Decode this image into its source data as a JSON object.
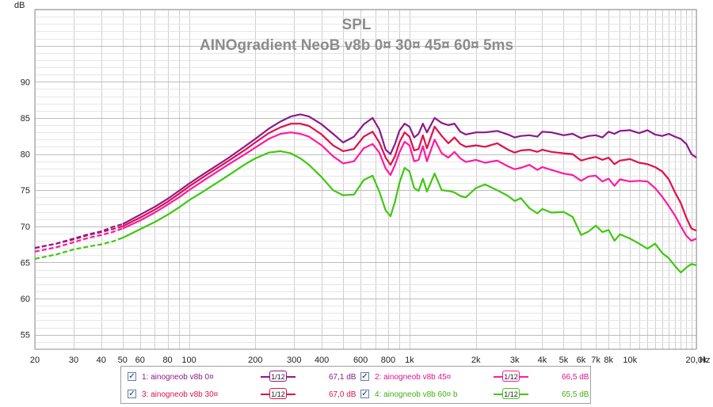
{
  "chart_data": {
    "type": "line",
    "title": "SPL",
    "subtitle": "AINOgradient NeoB v8b 0¤ 30¤ 45¤ 60¤ 5ms",
    "ylabel": "dB",
    "xlabel": "Hz",
    "xscale": "log",
    "xlim": [
      20,
      20000
    ],
    "ylim": [
      53,
      100
    ],
    "grid": true,
    "yticks": [
      {
        "v": 55,
        "label": "55"
      },
      {
        "v": 60,
        "label": "60"
      },
      {
        "v": 65,
        "label": "65"
      },
      {
        "v": 70,
        "label": "70"
      },
      {
        "v": 75,
        "label": "75"
      },
      {
        "v": 80,
        "label": "80"
      },
      {
        "v": 85,
        "label": "85"
      },
      {
        "v": 90,
        "label": "90"
      }
    ],
    "xticks": [
      {
        "v": 20,
        "label": "20"
      },
      {
        "v": 30,
        "label": "30"
      },
      {
        "v": 40,
        "label": "40"
      },
      {
        "v": 50,
        "label": "50"
      },
      {
        "v": 60,
        "label": "60"
      },
      {
        "v": 80,
        "label": "80"
      },
      {
        "v": 100,
        "label": "100"
      },
      {
        "v": 200,
        "label": "200"
      },
      {
        "v": 300,
        "label": "300"
      },
      {
        "v": 400,
        "label": "400"
      },
      {
        "v": 600,
        "label": "600"
      },
      {
        "v": 800,
        "label": "800"
      },
      {
        "v": 1000,
        "label": "1k"
      },
      {
        "v": 2000,
        "label": "2k"
      },
      {
        "v": 3000,
        "label": "3k"
      },
      {
        "v": 4000,
        "label": "4k"
      },
      {
        "v": 5000,
        "label": "5k"
      },
      {
        "v": 6000,
        "label": "6k"
      },
      {
        "v": 7000,
        "label": "7k"
      },
      {
        "v": 8000,
        "label": "8k"
      },
      {
        "v": 10000,
        "label": "10k"
      },
      {
        "v": 20000,
        "label": "20,0k"
      }
    ],
    "series": [
      {
        "name": "ainogneob v8b 0¤",
        "index": "1:",
        "color": "#8b1a8b",
        "level": "67,1 dB",
        "smoothing": "1/12",
        "dashed_until": 50,
        "x": [
          20,
          25,
          30,
          35,
          40,
          45,
          50,
          60,
          70,
          80,
          90,
          100,
          120,
          150,
          180,
          200,
          230,
          260,
          290,
          320,
          350,
          400,
          450,
          500,
          560,
          620,
          680,
          730,
          780,
          820,
          860,
          900,
          950,
          1000,
          1050,
          1100,
          1150,
          1200,
          1300,
          1400,
          1500,
          1600,
          1700,
          1800,
          2000,
          2200,
          2500,
          2800,
          3000,
          3200,
          3500,
          3800,
          4000,
          4400,
          5000,
          5500,
          6000,
          6500,
          7000,
          7500,
          8000,
          8500,
          9000,
          10000,
          11000,
          12000,
          13000,
          14000,
          15000,
          16000,
          17000,
          18000,
          19000,
          20000
        ],
        "y": [
          67.0,
          67.6,
          68.3,
          68.9,
          69.3,
          69.9,
          70.3,
          71.6,
          72.7,
          73.8,
          74.9,
          75.9,
          77.5,
          79.4,
          81.1,
          82.1,
          83.5,
          84.5,
          85.2,
          85.5,
          85.2,
          84.1,
          82.8,
          81.6,
          82.4,
          84.1,
          85.0,
          83.4,
          80.6,
          80.0,
          81.4,
          83.2,
          84.2,
          83.8,
          82.3,
          82.8,
          84.2,
          83.0,
          85.0,
          84.3,
          84.0,
          84.2,
          83.1,
          82.7,
          83.0,
          83.0,
          83.2,
          82.7,
          82.3,
          82.5,
          82.6,
          82.4,
          83.1,
          83.0,
          82.6,
          82.8,
          82.2,
          82.5,
          82.6,
          82.3,
          83.1,
          82.8,
          83.2,
          83.3,
          82.9,
          83.3,
          82.7,
          82.5,
          82.8,
          82.4,
          82.1,
          81.4,
          80.0,
          79.5
        ]
      },
      {
        "name": "ainogneob v8b 30¤",
        "index": "3:",
        "color": "#e0104a",
        "level": "67,0 dB",
        "smoothing": "1/12",
        "dashed_until": 50,
        "x": [
          20,
          25,
          30,
          35,
          40,
          45,
          50,
          60,
          70,
          80,
          90,
          100,
          120,
          150,
          180,
          200,
          230,
          260,
          290,
          320,
          350,
          400,
          450,
          500,
          560,
          620,
          680,
          730,
          780,
          820,
          860,
          900,
          950,
          1000,
          1050,
          1100,
          1150,
          1200,
          1300,
          1400,
          1500,
          1600,
          1700,
          1800,
          2000,
          2200,
          2500,
          2800,
          3000,
          3200,
          3500,
          3800,
          4000,
          4400,
          5000,
          5500,
          6000,
          6500,
          7000,
          7500,
          8000,
          8500,
          9000,
          10000,
          11000,
          12000,
          13000,
          14000,
          15000,
          16000,
          17000,
          18000,
          19000,
          20000
        ],
        "y": [
          67.0,
          67.6,
          68.2,
          68.8,
          69.2,
          69.6,
          70.0,
          71.2,
          72.3,
          73.4,
          74.5,
          75.5,
          77.1,
          79.0,
          80.6,
          81.6,
          82.9,
          83.7,
          84.2,
          84.2,
          83.9,
          82.7,
          81.2,
          80.4,
          80.7,
          82.4,
          83.1,
          81.6,
          79.5,
          78.5,
          79.7,
          81.6,
          83.0,
          82.4,
          80.5,
          80.7,
          82.6,
          80.8,
          83.8,
          82.5,
          81.5,
          82.3,
          81.4,
          81.0,
          81.2,
          81.0,
          81.5,
          80.6,
          80.2,
          80.5,
          80.6,
          80.3,
          80.6,
          80.3,
          80.1,
          80.0,
          79.1,
          79.4,
          79.6,
          79.2,
          79.5,
          78.6,
          79.1,
          79.3,
          78.8,
          78.6,
          78.2,
          77.6,
          76.5,
          74.7,
          73.2,
          71.2,
          69.7,
          69.4
        ]
      },
      {
        "name": "ainogneob v8b 45¤",
        "index": "2:",
        "color": "#ff1aa0",
        "level": "66,5 dB",
        "smoothing": "1/12",
        "dashed_until": 50,
        "x": [
          20,
          25,
          30,
          35,
          40,
          45,
          50,
          60,
          70,
          80,
          90,
          100,
          120,
          150,
          180,
          200,
          230,
          260,
          290,
          320,
          350,
          400,
          450,
          500,
          560,
          620,
          680,
          730,
          780,
          820,
          860,
          900,
          950,
          1000,
          1050,
          1100,
          1150,
          1200,
          1300,
          1400,
          1500,
          1600,
          1700,
          1800,
          2000,
          2200,
          2500,
          2800,
          3000,
          3200,
          3500,
          3800,
          4000,
          4400,
          5000,
          5500,
          6000,
          6500,
          7000,
          7500,
          8000,
          8500,
          9000,
          10000,
          11000,
          12000,
          13000,
          14000,
          15000,
          16000,
          17000,
          18000,
          19000,
          20000
        ],
        "y": [
          66.5,
          67.1,
          67.8,
          68.4,
          68.8,
          69.2,
          69.7,
          70.8,
          71.9,
          73.0,
          74.0,
          75.0,
          76.6,
          78.5,
          80.0,
          80.9,
          82.1,
          82.8,
          83.0,
          82.8,
          82.4,
          81.2,
          79.7,
          78.7,
          79.0,
          80.8,
          81.4,
          80.2,
          78.0,
          77.1,
          78.5,
          80.2,
          81.7,
          81.2,
          79.0,
          79.2,
          81.1,
          79.0,
          82.0,
          80.1,
          79.5,
          80.3,
          79.4,
          78.9,
          79.2,
          78.8,
          79.1,
          78.3,
          77.9,
          78.1,
          78.5,
          77.8,
          78.2,
          77.8,
          77.3,
          77.1,
          76.3,
          76.9,
          77.0,
          76.2,
          76.6,
          75.6,
          76.5,
          76.2,
          76.3,
          76.2,
          75.3,
          74.1,
          72.8,
          71.5,
          70.0,
          68.7,
          68.0,
          68.3
        ]
      },
      {
        "name": "ainogneob v8b 60¤ b",
        "index": "4:",
        "color": "#3fc80f",
        "level": "65,5 dB",
        "smoothing": "1/12",
        "dashed_until": 50,
        "x": [
          20,
          25,
          30,
          35,
          40,
          45,
          50,
          60,
          70,
          80,
          90,
          100,
          120,
          150,
          180,
          200,
          230,
          260,
          290,
          320,
          350,
          400,
          450,
          500,
          560,
          620,
          680,
          730,
          780,
          820,
          860,
          900,
          950,
          1000,
          1050,
          1100,
          1150,
          1200,
          1300,
          1400,
          1500,
          1600,
          1700,
          1800,
          2000,
          2200,
          2500,
          2800,
          3000,
          3200,
          3500,
          3800,
          4000,
          4400,
          5000,
          5500,
          6000,
          6500,
          7000,
          7500,
          8000,
          8500,
          9000,
          10000,
          11000,
          12000,
          13000,
          14000,
          15000,
          16000,
          17000,
          18000,
          19000,
          20000
        ],
        "y": [
          65.5,
          66.1,
          66.8,
          67.2,
          67.5,
          67.9,
          68.4,
          69.6,
          70.6,
          71.6,
          72.6,
          73.6,
          75.1,
          77.0,
          78.6,
          79.4,
          80.2,
          80.4,
          80.1,
          79.4,
          78.5,
          76.8,
          75.0,
          74.3,
          74.4,
          76.4,
          77.0,
          74.8,
          72.2,
          71.4,
          73.4,
          76.0,
          78.1,
          77.6,
          75.3,
          74.9,
          76.6,
          74.8,
          77.3,
          75.0,
          74.9,
          74.7,
          74.2,
          74.0,
          75.3,
          75.8,
          75.0,
          74.2,
          73.5,
          73.9,
          72.5,
          71.8,
          72.4,
          71.9,
          72.0,
          71.3,
          68.8,
          69.3,
          70.1,
          69.2,
          69.5,
          68.0,
          68.9,
          68.3,
          67.6,
          66.9,
          67.6,
          66.3,
          65.6,
          64.5,
          63.6,
          64.3,
          64.8,
          64.6
        ]
      }
    ],
    "legend": {
      "placement": "bottom",
      "order": [
        0,
        2,
        1,
        3
      ]
    }
  }
}
